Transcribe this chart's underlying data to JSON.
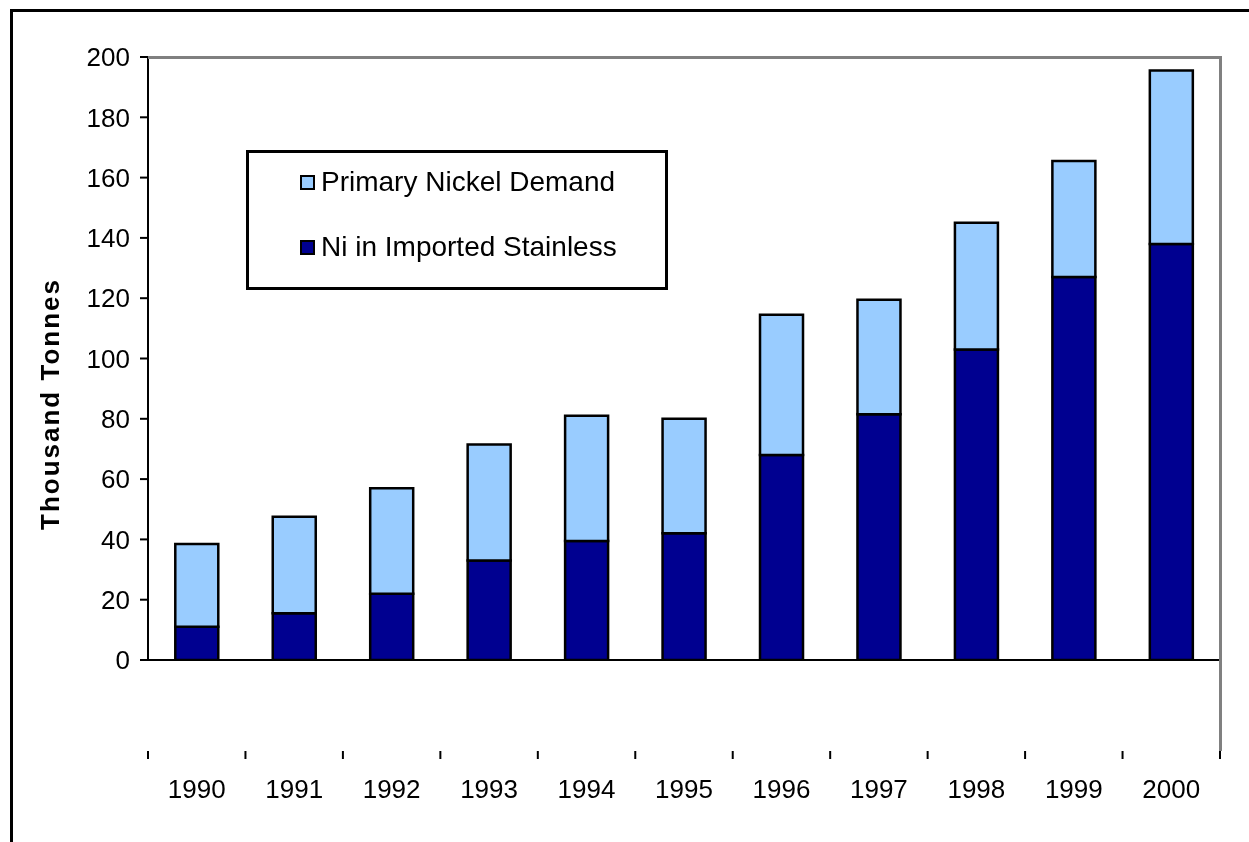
{
  "chart_data": {
    "type": "bar",
    "ylabel": "Thousand Tonnes",
    "categories": [
      "1990",
      "1991",
      "1992",
      "1993",
      "1994",
      "1995",
      "1996",
      "1997",
      "1998",
      "1999",
      "2000"
    ],
    "series": [
      {
        "name": "Ni in Imported Stainless",
        "color": "#000090",
        "values": [
          11,
          15.5,
          22,
          33,
          39.5,
          42,
          68,
          81.5,
          103,
          127,
          138
        ]
      },
      {
        "name": "Primary Nickel Demand",
        "color": "#99ccff",
        "values": [
          27.5,
          32,
          35,
          38.5,
          41.5,
          38,
          46.5,
          38,
          42,
          38.5,
          57.5
        ]
      }
    ],
    "stacked": true,
    "ylim": [
      0,
      200
    ],
    "yticks": [
      0,
      20,
      40,
      60,
      80,
      100,
      120,
      140,
      160,
      180,
      200
    ],
    "legend": "top left"
  }
}
